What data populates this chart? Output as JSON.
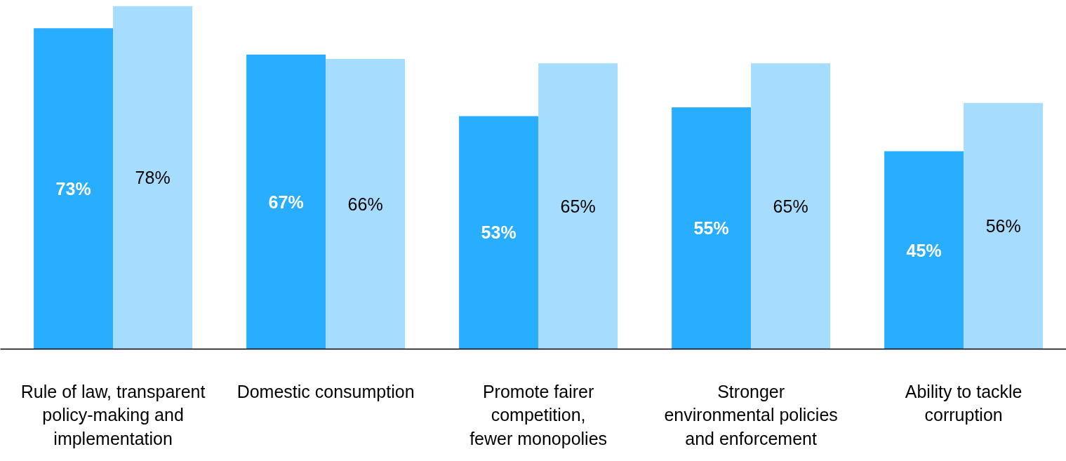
{
  "chart_data": {
    "type": "bar",
    "categories": [
      "Rule of law, transparent policy-making and implementation",
      "Domestic consumption",
      "Promote fairer competition, fewer monopolies",
      "Stronger environmental policies and enforcement",
      "Ability to tackle corruption"
    ],
    "series": [
      {
        "color": "#29adff",
        "values": [
          73,
          67,
          53,
          55,
          45
        ],
        "value_labels": [
          "73%",
          "67%",
          "53%",
          "55%",
          "45%"
        ]
      },
      {
        "color": "#a6dcfd",
        "values": [
          78,
          66,
          65,
          65,
          56
        ],
        "value_labels": [
          "78%",
          "66%",
          "65%",
          "65%",
          "56%"
        ]
      }
    ],
    "tick_labels": "x"
  }
}
